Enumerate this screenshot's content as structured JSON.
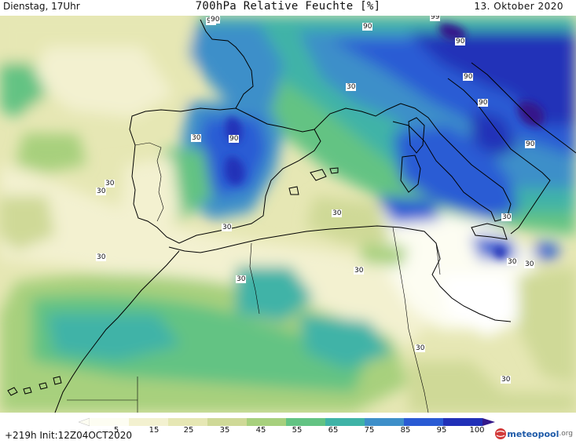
{
  "header": {
    "valid_time": "Dienstag, 17Uhr",
    "title": "700hPa Relative Feuchte [%]",
    "date": "13. Oktober 2020"
  },
  "map": {
    "contour_labels": [
      "90",
      "90",
      "30",
      "30",
      "30",
      "90",
      "90",
      "90",
      "90",
      "30",
      "30",
      "90",
      "30",
      "30",
      "30",
      "90",
      "30",
      "30",
      "30",
      "30",
      "99",
      "30"
    ]
  },
  "colorbar": {
    "ticks": [
      "5",
      "15",
      "25",
      "35",
      "45",
      "55",
      "65",
      "75",
      "85",
      "95",
      "100"
    ],
    "colors": [
      "#fdfdf2",
      "#f3f1d0",
      "#e6e7b4",
      "#cfd997",
      "#a7d07d",
      "#63c383",
      "#3fb3a7",
      "#3e8fc9",
      "#2a5bd4",
      "#2130b8",
      "#34188a"
    ]
  },
  "footer": {
    "init": "+219h Init:12Z04OCT2020",
    "logo_name": "meteopool",
    "logo_suffix": ".org"
  }
}
